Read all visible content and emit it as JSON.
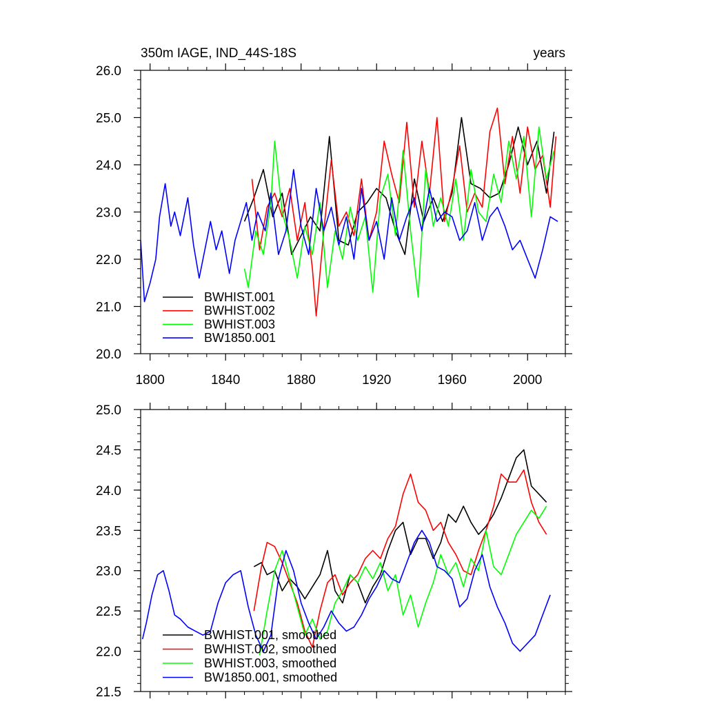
{
  "chart_data": [
    {
      "type": "line",
      "title_left": "350m IAGE, IND_44S-18S",
      "title_right": "years",
      "xlabel": "",
      "ylabel": "",
      "xlim": [
        1795,
        2020
      ],
      "ylim": [
        20.0,
        26.0
      ],
      "xticks": [
        1800,
        1840,
        1880,
        1920,
        1960,
        2000
      ],
      "xtick_labels": [
        "1800",
        "1840",
        "1880",
        "1920",
        "1960",
        "2000"
      ],
      "yticks": [
        20.0,
        21.0,
        22.0,
        23.0,
        24.0,
        25.0,
        26.0
      ],
      "ytick_labels": [
        "20.0",
        "21.0",
        "22.0",
        "23.0",
        "24.0",
        "25.0",
        "26.0"
      ],
      "legend_position": "bottom-left",
      "series": [
        {
          "name": "BWHIST.001",
          "color": "#000000",
          "x": [
            1850,
            1855,
            1860,
            1865,
            1870,
            1875,
            1880,
            1885,
            1890,
            1895,
            1900,
            1905,
            1910,
            1915,
            1920,
            1925,
            1930,
            1935,
            1940,
            1945,
            1950,
            1955,
            1960,
            1965,
            1970,
            1975,
            1980,
            1985,
            1990,
            1995,
            2000,
            2005,
            2010,
            2014
          ],
          "y": [
            22.8,
            23.3,
            23.9,
            22.9,
            23.4,
            22.1,
            22.5,
            22.9,
            22.6,
            24.6,
            22.4,
            22.3,
            23.0,
            23.2,
            23.5,
            23.3,
            22.6,
            22.1,
            23.7,
            22.8,
            23.3,
            22.8,
            23.4,
            25.0,
            23.6,
            23.5,
            23.3,
            23.4,
            24.0,
            24.8,
            24.0,
            24.5,
            23.4,
            24.7
          ]
        },
        {
          "name": "BWHIST.002",
          "color": "#ff0000",
          "x": [
            1854,
            1858,
            1862,
            1866,
            1870,
            1874,
            1878,
            1882,
            1886,
            1888,
            1892,
            1896,
            1900,
            1904,
            1908,
            1912,
            1916,
            1920,
            1924,
            1928,
            1932,
            1936,
            1940,
            1944,
            1948,
            1952,
            1956,
            1960,
            1964,
            1968,
            1972,
            1976,
            1980,
            1984,
            1988,
            1992,
            1996,
            2000,
            2004,
            2008,
            2012,
            2015
          ],
          "y": [
            23.7,
            22.2,
            23.1,
            23.4,
            22.9,
            23.5,
            22.4,
            23.2,
            21.8,
            20.8,
            22.6,
            24.1,
            22.7,
            23.0,
            22.5,
            23.7,
            22.4,
            23.0,
            24.5,
            23.8,
            23.2,
            24.9,
            23.1,
            24.5,
            23.4,
            25.0,
            22.8,
            23.5,
            24.4,
            23.0,
            23.4,
            23.1,
            24.7,
            25.2,
            23.6,
            24.6,
            23.4,
            24.8,
            23.9,
            24.2,
            23.1,
            24.6
          ]
        },
        {
          "name": "BWHIST.003",
          "color": "#00ff00",
          "x": [
            1850,
            1852,
            1856,
            1860,
            1864,
            1866,
            1870,
            1874,
            1878,
            1882,
            1886,
            1890,
            1894,
            1898,
            1902,
            1906,
            1910,
            1914,
            1918,
            1922,
            1926,
            1930,
            1934,
            1938,
            1942,
            1946,
            1950,
            1954,
            1958,
            1962,
            1966,
            1970,
            1974,
            1978,
            1982,
            1986,
            1990,
            1994,
            1998,
            2002,
            2006,
            2010,
            2014
          ],
          "y": [
            21.8,
            21.4,
            22.6,
            22.1,
            23.2,
            24.5,
            23.0,
            22.4,
            21.6,
            22.7,
            22.1,
            23.2,
            21.4,
            22.6,
            22.0,
            23.1,
            22.4,
            22.9,
            21.3,
            23.3,
            23.8,
            22.5,
            24.3,
            22.6,
            21.2,
            23.9,
            22.7,
            23.3,
            22.7,
            23.7,
            22.4,
            23.9,
            23.0,
            22.8,
            23.8,
            23.2,
            24.5,
            23.7,
            24.6,
            22.9,
            24.8,
            23.7,
            24.3
          ]
        },
        {
          "name": "BW1850.001",
          "color": "#0000ff",
          "x": [
            1795,
            1797,
            1800,
            1803,
            1805,
            1808,
            1811,
            1813,
            1816,
            1820,
            1823,
            1826,
            1829,
            1832,
            1835,
            1838,
            1842,
            1845,
            1848,
            1851,
            1854,
            1857,
            1861,
            1864,
            1868,
            1872,
            1876,
            1880,
            1884,
            1888,
            1892,
            1896,
            1900,
            1904,
            1908,
            1912,
            1916,
            1920,
            1924,
            1928,
            1932,
            1936,
            1940,
            1944,
            1948,
            1952,
            1956,
            1960,
            1964,
            1968,
            1972,
            1976,
            1980,
            1984,
            1988,
            1992,
            1996,
            2000,
            2004,
            2008,
            2012,
            2016
          ],
          "y": [
            22.4,
            21.1,
            21.5,
            22.0,
            22.9,
            23.6,
            22.7,
            23.0,
            22.5,
            23.3,
            22.3,
            21.6,
            22.2,
            22.8,
            22.2,
            22.6,
            21.7,
            22.4,
            22.8,
            23.2,
            22.4,
            23.0,
            22.6,
            23.4,
            22.1,
            22.6,
            23.9,
            22.7,
            22.1,
            23.5,
            22.6,
            23.1,
            22.3,
            22.9,
            22.0,
            23.5,
            22.4,
            22.8,
            22.0,
            23.3,
            22.4,
            22.9,
            23.3,
            22.6,
            23.5,
            22.8,
            23.0,
            22.9,
            22.4,
            22.6,
            23.2,
            22.4,
            22.9,
            23.1,
            22.7,
            22.2,
            22.4,
            22.0,
            21.6,
            22.2,
            22.9,
            22.8
          ]
        }
      ]
    },
    {
      "type": "line",
      "title_left": "",
      "title_right": "",
      "xlabel": "",
      "ylabel": "",
      "xlim": [
        1795,
        2020
      ],
      "ylim": [
        21.5,
        25.0
      ],
      "xticks": [
        1800,
        1840,
        1880,
        1920,
        1960,
        2000
      ],
      "xtick_labels": [],
      "yticks": [
        21.5,
        22.0,
        22.5,
        23.0,
        23.5,
        24.0,
        24.5,
        25.0
      ],
      "ytick_labels": [
        "21.5",
        "22.0",
        "22.5",
        "23.0",
        "23.5",
        "24.0",
        "24.5",
        "25.0"
      ],
      "legend_position": "bottom-left",
      "series": [
        {
          "name": "BWHIST.001, smoothed",
          "color": "#000000",
          "x": [
            1855,
            1859,
            1862,
            1866,
            1870,
            1874,
            1878,
            1882,
            1886,
            1890,
            1894,
            1898,
            1902,
            1906,
            1910,
            1914,
            1918,
            1922,
            1926,
            1930,
            1934,
            1938,
            1942,
            1946,
            1950,
            1954,
            1958,
            1962,
            1966,
            1970,
            1974,
            1978,
            1982,
            1986,
            1990,
            1994,
            1998,
            2002,
            2006,
            2010
          ],
          "y": [
            23.05,
            23.1,
            22.95,
            23.0,
            22.75,
            22.9,
            22.8,
            22.65,
            22.8,
            22.95,
            23.25,
            22.75,
            22.6,
            22.95,
            22.85,
            22.6,
            22.8,
            22.95,
            23.25,
            23.5,
            23.6,
            23.2,
            23.4,
            23.4,
            23.15,
            23.35,
            23.7,
            23.6,
            23.8,
            23.6,
            23.45,
            23.55,
            23.7,
            23.9,
            24.15,
            24.4,
            24.5,
            24.05,
            23.95,
            23.85
          ]
        },
        {
          "name": "BWHIST.002, smoothed",
          "color": "#ff0000",
          "x": [
            1855,
            1859,
            1862,
            1866,
            1870,
            1874,
            1878,
            1882,
            1886,
            1890,
            1894,
            1898,
            1902,
            1906,
            1910,
            1914,
            1918,
            1922,
            1926,
            1930,
            1934,
            1938,
            1942,
            1946,
            1950,
            1954,
            1958,
            1962,
            1966,
            1970,
            1974,
            1978,
            1982,
            1986,
            1990,
            1994,
            1998,
            2002,
            2006,
            2010
          ],
          "y": [
            22.5,
            23.05,
            23.35,
            23.3,
            23.1,
            22.85,
            22.6,
            22.25,
            22.05,
            22.5,
            22.85,
            22.95,
            22.7,
            22.85,
            22.95,
            23.15,
            23.25,
            23.15,
            23.4,
            23.55,
            23.95,
            24.2,
            23.85,
            23.75,
            23.5,
            23.6,
            23.35,
            23.2,
            23.0,
            22.95,
            23.25,
            23.5,
            23.8,
            24.2,
            24.1,
            24.1,
            24.25,
            23.85,
            23.6,
            23.45
          ]
        },
        {
          "name": "BWHIST.003, smoothed",
          "color": "#00ff00",
          "x": [
            1858,
            1862,
            1866,
            1870,
            1874,
            1878,
            1882,
            1886,
            1890,
            1894,
            1898,
            1902,
            1906,
            1910,
            1914,
            1918,
            1922,
            1926,
            1930,
            1934,
            1938,
            1942,
            1946,
            1950,
            1954,
            1958,
            1962,
            1966,
            1970,
            1974,
            1978,
            1982,
            1986,
            1990,
            1994,
            1998,
            2002,
            2006,
            2010
          ],
          "y": [
            21.95,
            22.5,
            23.0,
            23.25,
            22.9,
            22.55,
            22.2,
            22.4,
            22.15,
            22.25,
            22.6,
            22.75,
            22.95,
            22.85,
            23.05,
            22.9,
            23.1,
            22.75,
            22.95,
            22.45,
            22.7,
            22.3,
            22.6,
            22.85,
            23.2,
            22.95,
            23.1,
            22.8,
            23.15,
            23.0,
            23.5,
            23.05,
            22.95,
            23.2,
            23.45,
            23.6,
            23.75,
            23.65,
            23.8
          ]
        },
        {
          "name": "BW1850.001, smoothed",
          "color": "#0000ff",
          "x": [
            1796,
            1798,
            1801,
            1804,
            1807,
            1810,
            1813,
            1816,
            1820,
            1824,
            1828,
            1832,
            1836,
            1840,
            1844,
            1848,
            1852,
            1856,
            1860,
            1864,
            1868,
            1872,
            1876,
            1880,
            1884,
            1888,
            1892,
            1896,
            1900,
            1904,
            1908,
            1912,
            1916,
            1920,
            1924,
            1928,
            1932,
            1936,
            1940,
            1944,
            1948,
            1952,
            1956,
            1960,
            1964,
            1968,
            1972,
            1976,
            1980,
            1984,
            1988,
            1992,
            1996,
            2000,
            2004,
            2008,
            2012
          ],
          "y": [
            22.15,
            22.35,
            22.7,
            22.95,
            23.0,
            22.75,
            22.45,
            22.4,
            22.3,
            22.25,
            22.2,
            22.25,
            22.6,
            22.85,
            22.95,
            23.0,
            22.55,
            22.2,
            22.0,
            22.2,
            22.9,
            23.25,
            23.0,
            22.6,
            22.35,
            22.15,
            22.3,
            22.5,
            22.35,
            22.25,
            22.3,
            22.45,
            22.65,
            22.8,
            23.0,
            22.9,
            22.85,
            23.1,
            23.35,
            23.5,
            23.35,
            23.05,
            23.0,
            22.9,
            22.55,
            22.65,
            23.0,
            23.2,
            22.8,
            22.55,
            22.35,
            22.1,
            22.0,
            22.1,
            22.2,
            22.45,
            22.7
          ]
        }
      ]
    }
  ]
}
